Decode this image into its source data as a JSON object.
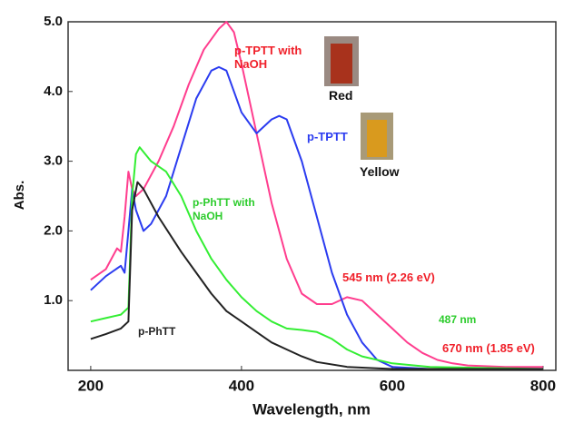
{
  "chart_data": {
    "type": "line",
    "x_label": "Wavelength, nm",
    "y_label": "Abs.",
    "xlim": [
      170,
      817
    ],
    "ylim": [
      0,
      5.0
    ],
    "xticks": [
      200,
      400,
      600,
      800
    ],
    "yticks": [
      {
        "value": 1.0,
        "label": "1.0"
      },
      {
        "value": 2.0,
        "label": "2.0"
      },
      {
        "value": 3.0,
        "label": "3.0"
      },
      {
        "value": 4.0,
        "label": "4.0"
      },
      {
        "value": 5.0,
        "label": "5.0"
      }
    ],
    "series": [
      {
        "name": "p-TPTT with NaOH",
        "color": "#ff3d8e",
        "x": [
          200,
          220,
          235,
          240,
          245,
          250,
          255,
          260,
          270,
          290,
          310,
          330,
          350,
          370,
          380,
          390,
          400,
          420,
          440,
          460,
          480,
          500,
          520,
          540,
          560,
          580,
          600,
          620,
          640,
          660,
          680,
          700,
          750,
          800
        ],
        "values": [
          1.3,
          1.45,
          1.75,
          1.7,
          2.2,
          2.85,
          2.6,
          2.5,
          2.6,
          3.0,
          3.5,
          4.1,
          4.6,
          4.9,
          5.0,
          4.85,
          4.4,
          3.4,
          2.4,
          1.6,
          1.1,
          0.95,
          0.95,
          1.05,
          1.0,
          0.8,
          0.6,
          0.4,
          0.25,
          0.15,
          0.1,
          0.07,
          0.05,
          0.05
        ]
      },
      {
        "name": "p-TPTT",
        "color": "#2b3cf0",
        "x": [
          200,
          220,
          240,
          245,
          250,
          255,
          260,
          270,
          280,
          300,
          320,
          340,
          360,
          370,
          380,
          400,
          420,
          440,
          450,
          460,
          480,
          500,
          520,
          540,
          560,
          580,
          600,
          650,
          800
        ],
        "values": [
          1.15,
          1.35,
          1.5,
          1.4,
          2.0,
          2.6,
          2.3,
          2.0,
          2.1,
          2.5,
          3.2,
          3.9,
          4.3,
          4.35,
          4.3,
          3.7,
          3.4,
          3.6,
          3.65,
          3.6,
          3.0,
          2.2,
          1.4,
          0.8,
          0.4,
          0.15,
          0.05,
          0.02,
          0.02
        ]
      },
      {
        "name": "p-PhTT with NaOH",
        "color": "#33ee33",
        "x": [
          200,
          220,
          240,
          250,
          255,
          260,
          265,
          280,
          300,
          320,
          340,
          360,
          380,
          400,
          420,
          440,
          460,
          480,
          500,
          520,
          540,
          560,
          600,
          650,
          800
        ],
        "values": [
          0.7,
          0.75,
          0.8,
          0.9,
          2.5,
          3.1,
          3.2,
          3.0,
          2.85,
          2.5,
          2.0,
          1.6,
          1.3,
          1.05,
          0.85,
          0.7,
          0.6,
          0.58,
          0.55,
          0.45,
          0.3,
          0.2,
          0.1,
          0.05,
          0.02
        ]
      },
      {
        "name": "p-PhTT",
        "color": "#222222",
        "x": [
          200,
          220,
          240,
          250,
          255,
          262,
          270,
          290,
          320,
          340,
          360,
          380,
          400,
          420,
          440,
          460,
          480,
          500,
          540,
          600,
          800
        ],
        "values": [
          0.45,
          0.52,
          0.6,
          0.7,
          2.3,
          2.7,
          2.6,
          2.2,
          1.7,
          1.4,
          1.1,
          0.85,
          0.7,
          0.55,
          0.4,
          0.3,
          0.2,
          0.12,
          0.05,
          0.02,
          0.02
        ]
      }
    ],
    "annotations": [
      {
        "text": "Red",
        "color": "#111111"
      },
      {
        "text": "Yellow",
        "color": "#111111"
      },
      {
        "text": "545 nm (2.26 eV)",
        "color": "#f0202a"
      },
      {
        "text": "487 nm",
        "color": "#2ccc2c"
      },
      {
        "text": "670 nm (1.85 eV)",
        "color": "#f0202a"
      }
    ]
  }
}
